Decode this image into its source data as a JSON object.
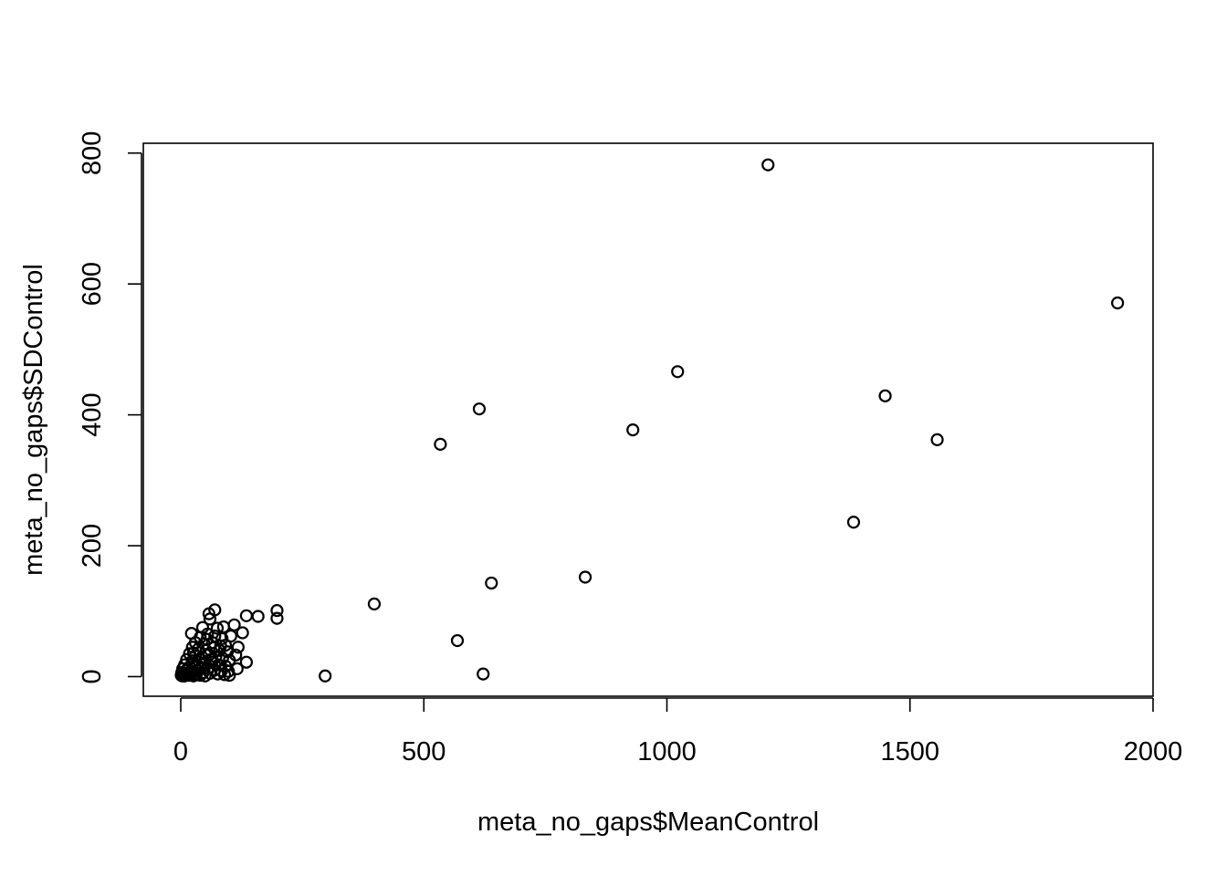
{
  "chart_data": {
    "type": "scatter",
    "title": "",
    "xlabel": "meta_no_gaps$MeanControl",
    "ylabel": "meta_no_gaps$SDControl",
    "xlim": [
      -77,
      2000
    ],
    "ylim": [
      -30,
      815
    ],
    "x_ticks": [
      0,
      500,
      1000,
      1500,
      2000
    ],
    "x_tick_labels": [
      "0",
      "500",
      "1000",
      "1500",
      "2000"
    ],
    "y_ticks": [
      0,
      200,
      400,
      600,
      800
    ],
    "y_tick_labels": [
      "0",
      "200",
      "400",
      "600",
      "800"
    ],
    "grid": false,
    "legend": "none",
    "marker": "open-circle",
    "colors": {
      "marker": "#000000",
      "axis": "#000000",
      "background": "#ffffff"
    },
    "points": [
      {
        "x": 1208,
        "y": 782
      },
      {
        "x": 1927,
        "y": 571
      },
      {
        "x": 1022,
        "y": 466
      },
      {
        "x": 1449,
        "y": 429
      },
      {
        "x": 614,
        "y": 409
      },
      {
        "x": 930,
        "y": 377
      },
      {
        "x": 534,
        "y": 355
      },
      {
        "x": 1556,
        "y": 362
      },
      {
        "x": 1384,
        "y": 236
      },
      {
        "x": 832,
        "y": 152
      },
      {
        "x": 639,
        "y": 143
      },
      {
        "x": 398,
        "y": 111
      },
      {
        "x": 569,
        "y": 55
      },
      {
        "x": 622,
        "y": 4
      },
      {
        "x": 297,
        "y": 1
      },
      {
        "x": 198,
        "y": 101
      },
      {
        "x": 198,
        "y": 89
      },
      {
        "x": 159,
        "y": 92
      },
      {
        "x": 135,
        "y": 93
      },
      {
        "x": 135,
        "y": 22
      },
      {
        "x": 127,
        "y": 67
      },
      {
        "x": 118,
        "y": 45
      },
      {
        "x": 113,
        "y": 33
      },
      {
        "x": 110,
        "y": 79
      },
      {
        "x": 103,
        "y": 62
      },
      {
        "x": 116,
        "y": 12
      },
      {
        "x": 70,
        "y": 102
      },
      {
        "x": 58,
        "y": 96
      },
      {
        "x": 60,
        "y": 88
      },
      {
        "x": 75,
        "y": 74
      },
      {
        "x": 45,
        "y": 75
      },
      {
        "x": 88,
        "y": 76
      },
      {
        "x": 22,
        "y": 66
      },
      {
        "x": 40,
        "y": 60
      },
      {
        "x": 55,
        "y": 65
      },
      {
        "x": 70,
        "y": 62
      },
      {
        "x": 85,
        "y": 58
      },
      {
        "x": 30,
        "y": 52
      },
      {
        "x": 48,
        "y": 50
      },
      {
        "x": 65,
        "y": 52
      },
      {
        "x": 92,
        "y": 48
      },
      {
        "x": 24,
        "y": 45
      },
      {
        "x": 36,
        "y": 42
      },
      {
        "x": 52,
        "y": 40
      },
      {
        "x": 68,
        "y": 44
      },
      {
        "x": 80,
        "y": 40
      },
      {
        "x": 96,
        "y": 38
      },
      {
        "x": 18,
        "y": 35
      },
      {
        "x": 30,
        "y": 32
      },
      {
        "x": 44,
        "y": 30
      },
      {
        "x": 58,
        "y": 33
      },
      {
        "x": 72,
        "y": 30
      },
      {
        "x": 86,
        "y": 28
      },
      {
        "x": 100,
        "y": 25
      },
      {
        "x": 12,
        "y": 26
      },
      {
        "x": 24,
        "y": 24
      },
      {
        "x": 38,
        "y": 22
      },
      {
        "x": 50,
        "y": 20
      },
      {
        "x": 64,
        "y": 22
      },
      {
        "x": 78,
        "y": 18
      },
      {
        "x": 92,
        "y": 16
      },
      {
        "x": 8,
        "y": 18
      },
      {
        "x": 18,
        "y": 15
      },
      {
        "x": 30,
        "y": 14
      },
      {
        "x": 42,
        "y": 12
      },
      {
        "x": 56,
        "y": 13
      },
      {
        "x": 70,
        "y": 10
      },
      {
        "x": 84,
        "y": 9
      },
      {
        "x": 98,
        "y": 8
      },
      {
        "x": 4,
        "y": 12
      },
      {
        "x": 12,
        "y": 10
      },
      {
        "x": 20,
        "y": 8
      },
      {
        "x": 28,
        "y": 7
      },
      {
        "x": 36,
        "y": 9
      },
      {
        "x": 46,
        "y": 6
      },
      {
        "x": 60,
        "y": 5
      },
      {
        "x": 76,
        "y": 4
      },
      {
        "x": 90,
        "y": 3
      },
      {
        "x": 100,
        "y": 2
      },
      {
        "x": 2,
        "y": 6
      },
      {
        "x": 6,
        "y": 4
      },
      {
        "x": 10,
        "y": 5
      },
      {
        "x": 14,
        "y": 3
      },
      {
        "x": 18,
        "y": 2
      },
      {
        "x": 22,
        "y": 4
      },
      {
        "x": 26,
        "y": 1
      },
      {
        "x": 32,
        "y": 3
      },
      {
        "x": 40,
        "y": 2
      },
      {
        "x": 50,
        "y": 1
      },
      {
        "x": 1,
        "y": 2
      },
      {
        "x": 3,
        "y": 1
      },
      {
        "x": 5,
        "y": 3
      },
      {
        "x": 8,
        "y": 1
      },
      {
        "x": 15,
        "y": 6
      },
      {
        "x": 34,
        "y": 18
      },
      {
        "x": 62,
        "y": 26
      },
      {
        "x": 82,
        "y": 47
      },
      {
        "x": 26,
        "y": 36
      },
      {
        "x": 54,
        "y": 57
      }
    ]
  }
}
